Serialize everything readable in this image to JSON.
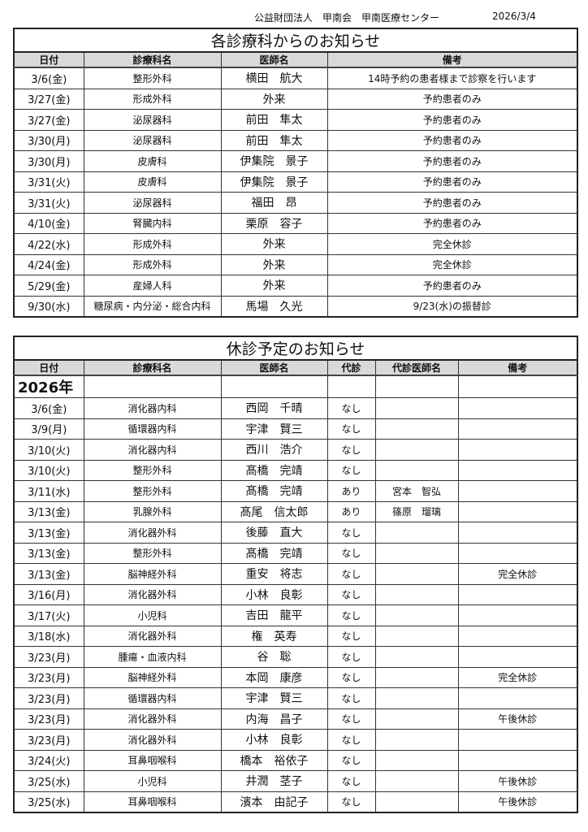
{
  "header": {
    "organization": "公益財団法人　甲南会　甲南医療センター",
    "date": "2026/3/4"
  },
  "notices": {
    "title": "各診療科からのお知らせ",
    "columns": [
      "日付",
      "診療科名",
      "医師名",
      "備考"
    ],
    "rows": [
      [
        "3/6(金)",
        "整形外科",
        "横田　航大",
        "14時予約の患者様まで診察を行います"
      ],
      [
        "3/27(金)",
        "形成外科",
        "外来",
        "予約患者のみ"
      ],
      [
        "3/27(金)",
        "泌尿器科",
        "前田　隼太",
        "予約患者のみ"
      ],
      [
        "3/30(月)",
        "泌尿器科",
        "前田　隼太",
        "予約患者のみ"
      ],
      [
        "3/30(月)",
        "皮膚科",
        "伊集院　景子",
        "予約患者のみ"
      ],
      [
        "3/31(火)",
        "皮膚科",
        "伊集院　景子",
        "予約患者のみ"
      ],
      [
        "3/31(火)",
        "泌尿器科",
        "福田　昂",
        "予約患者のみ"
      ],
      [
        "4/10(金)",
        "腎臓内科",
        "栗原　容子",
        "予約患者のみ"
      ],
      [
        "4/22(水)",
        "形成外科",
        "外来",
        "完全休診"
      ],
      [
        "4/24(金)",
        "形成外科",
        "外来",
        "完全休診"
      ],
      [
        "5/29(金)",
        "産婦人科",
        "外来",
        "予約患者のみ"
      ],
      [
        "9/30(水)",
        "糖尿病・内分泌・総合内科",
        "馬場　久光",
        "9/23(水)の振替診"
      ]
    ]
  },
  "closures": {
    "title": "休診予定のお知らせ",
    "columns": [
      "日付",
      "診療科名",
      "医師名",
      "代診",
      "代診医師名",
      "備考"
    ],
    "year": "2026年",
    "rows": [
      [
        "3/6(金)",
        "消化器内科",
        "西岡　千晴",
        "なし",
        "",
        ""
      ],
      [
        "3/9(月)",
        "循環器内科",
        "宇津　賢三",
        "なし",
        "",
        ""
      ],
      [
        "3/10(火)",
        "消化器内科",
        "西川　浩介",
        "なし",
        "",
        ""
      ],
      [
        "3/10(火)",
        "整形外科",
        "髙橋　完靖",
        "なし",
        "",
        ""
      ],
      [
        "3/11(水)",
        "整形外科",
        "髙橋　完靖",
        "あり",
        "宮本　智弘",
        ""
      ],
      [
        "3/13(金)",
        "乳腺外科",
        "髙尾　信太郎",
        "あり",
        "篠原　瑠璃",
        ""
      ],
      [
        "3/13(金)",
        "消化器外科",
        "後藤　直大",
        "なし",
        "",
        ""
      ],
      [
        "3/13(金)",
        "整形外科",
        "髙橋　完靖",
        "なし",
        "",
        ""
      ],
      [
        "3/13(金)",
        "脳神経外科",
        "重安　将志",
        "なし",
        "",
        "完全休診"
      ],
      [
        "3/16(月)",
        "消化器外科",
        "小林　良彰",
        "なし",
        "",
        ""
      ],
      [
        "3/17(火)",
        "小児科",
        "吉田　龍平",
        "なし",
        "",
        ""
      ],
      [
        "3/18(水)",
        "消化器外科",
        "権　英寿",
        "なし",
        "",
        ""
      ],
      [
        "3/23(月)",
        "腫瘍・血液内科",
        "谷　聡",
        "なし",
        "",
        ""
      ],
      [
        "3/23(月)",
        "脳神経外科",
        "本岡　康彦",
        "なし",
        "",
        "完全休診"
      ],
      [
        "3/23(月)",
        "循環器内科",
        "宇津　賢三",
        "なし",
        "",
        ""
      ],
      [
        "3/23(月)",
        "消化器外科",
        "内海　昌子",
        "なし",
        "",
        "午後休診"
      ],
      [
        "3/23(月)",
        "消化器外科",
        "小林　良彰",
        "なし",
        "",
        ""
      ],
      [
        "3/24(火)",
        "耳鼻咽喉科",
        "橋本　裕依子",
        "なし",
        "",
        ""
      ],
      [
        "3/25(水)",
        "小児科",
        "井潤　茎子",
        "なし",
        "",
        "午後休診"
      ],
      [
        "3/25(水)",
        "耳鼻咽喉科",
        "濱本　由記子",
        "なし",
        "",
        "午後休診"
      ]
    ]
  }
}
